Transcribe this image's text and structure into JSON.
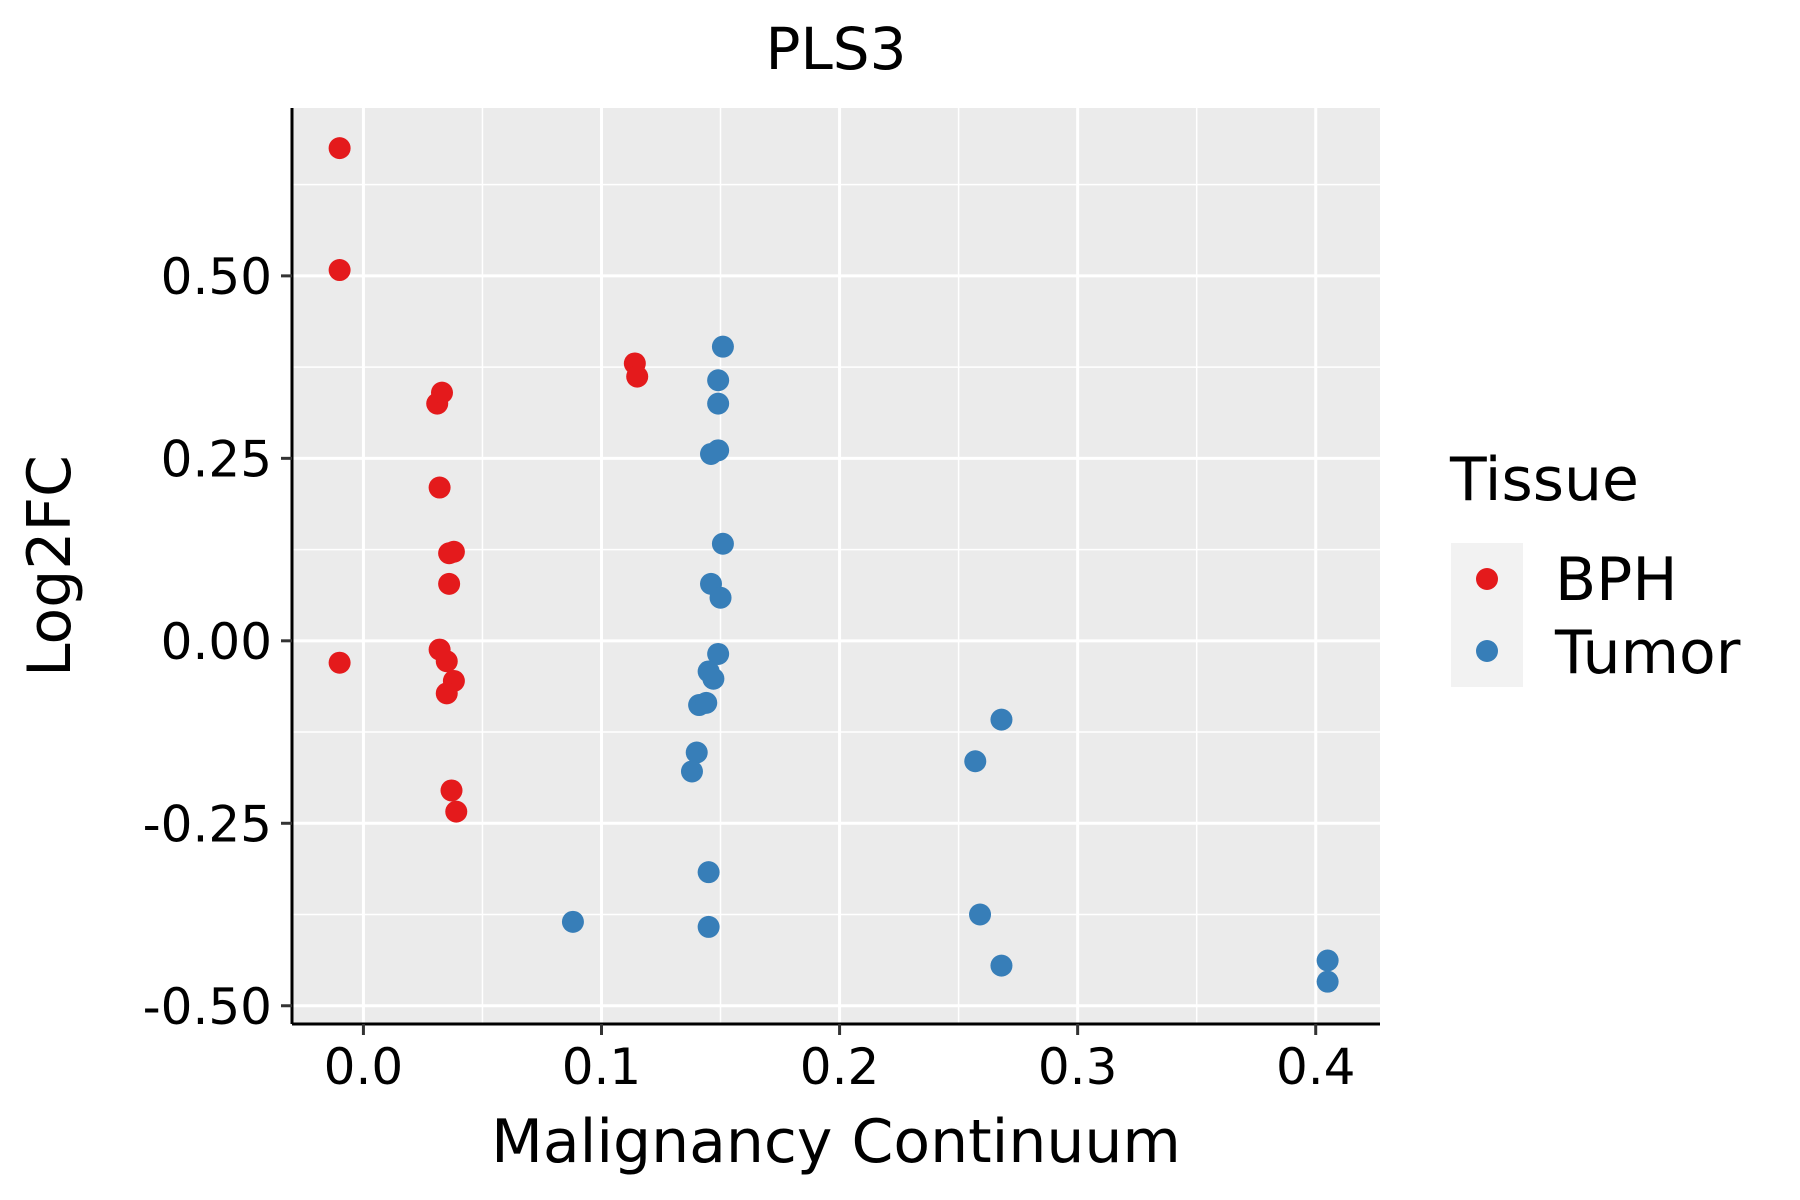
{
  "chart_data": {
    "type": "scatter",
    "title": "PLS3",
    "xlabel": "Malignancy Continuum",
    "ylabel": "Log2FC",
    "xlim": [
      -0.03,
      0.427
    ],
    "ylim": [
      -0.525,
      0.73
    ],
    "x_ticks": [
      0.0,
      0.1,
      0.2,
      0.3,
      0.4
    ],
    "x_tick_labels": [
      "0.0",
      "0.1",
      "0.2",
      "0.3",
      "0.4"
    ],
    "y_ticks": [
      0.5,
      0.25,
      0.0,
      -0.25,
      -0.5
    ],
    "y_tick_labels": [
      "0.50",
      "0.25",
      "0.00",
      "-0.25",
      "-0.50"
    ],
    "grid": true,
    "legend": {
      "title": "Tissue",
      "position": "right"
    },
    "series": [
      {
        "name": "BPH",
        "color": "#E41A1C",
        "points": [
          [
            -0.01,
            0.675
          ],
          [
            -0.01,
            0.508
          ],
          [
            -0.01,
            -0.03
          ],
          [
            0.031,
            0.325
          ],
          [
            0.033,
            0.34
          ],
          [
            0.032,
            0.21
          ],
          [
            0.036,
            0.12
          ],
          [
            0.038,
            0.122
          ],
          [
            0.036,
            0.078
          ],
          [
            0.032,
            -0.012
          ],
          [
            0.035,
            -0.028
          ],
          [
            0.038,
            -0.055
          ],
          [
            0.035,
            -0.072
          ],
          [
            0.037,
            -0.205
          ],
          [
            0.039,
            -0.234
          ],
          [
            0.114,
            0.38
          ],
          [
            0.115,
            0.362
          ]
        ]
      },
      {
        "name": "Tumor",
        "color": "#377EB8",
        "points": [
          [
            0.151,
            0.403
          ],
          [
            0.149,
            0.357
          ],
          [
            0.149,
            0.325
          ],
          [
            0.149,
            0.261
          ],
          [
            0.146,
            0.256
          ],
          [
            0.151,
            0.133
          ],
          [
            0.146,
            0.078
          ],
          [
            0.15,
            0.059
          ],
          [
            0.149,
            -0.018
          ],
          [
            0.145,
            -0.042
          ],
          [
            0.147,
            -0.052
          ],
          [
            0.141,
            -0.088
          ],
          [
            0.144,
            -0.085
          ],
          [
            0.14,
            -0.153
          ],
          [
            0.138,
            -0.179
          ],
          [
            0.145,
            -0.317
          ],
          [
            0.145,
            -0.392
          ],
          [
            0.088,
            -0.385
          ],
          [
            0.268,
            -0.108
          ],
          [
            0.257,
            -0.165
          ],
          [
            0.259,
            -0.375
          ],
          [
            0.268,
            -0.445
          ],
          [
            0.405,
            -0.438
          ],
          [
            0.405,
            -0.467
          ]
        ]
      }
    ]
  }
}
